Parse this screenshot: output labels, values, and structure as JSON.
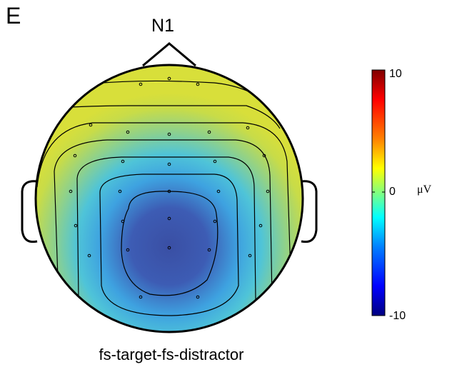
{
  "panel_label": "E",
  "component_label": "N1",
  "condition_label": "fs-target-fs-distractor",
  "colorbar": {
    "unit": "μV",
    "max_label": "10",
    "mid_label": "0",
    "min_label": "-10",
    "stops": [
      "#7f0000",
      "#ff0000",
      "#ff8000",
      "#ffff00",
      "#80ff80",
      "#00ffff",
      "#0080ff",
      "#0000ff",
      "#00007f"
    ]
  },
  "colors": {
    "head_outline": "#000000",
    "map_background": "#c8e03c",
    "positive_region": "#b9dc3c",
    "negative_peak": "#3c4aa0"
  }
}
